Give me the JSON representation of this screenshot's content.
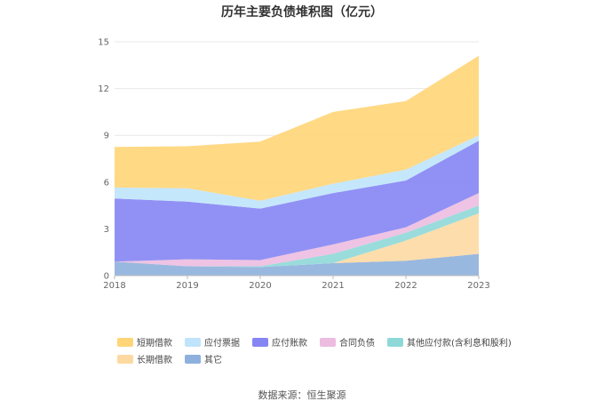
{
  "chart_data": {
    "type": "area",
    "stacked": true,
    "title": "历年主要负债堆积图（亿元）",
    "x": [
      "2018",
      "2019",
      "2020",
      "2021",
      "2022",
      "2023"
    ],
    "ylim": [
      0,
      15
    ],
    "yticks": [
      "0",
      "3",
      "6",
      "9",
      "12",
      "15"
    ],
    "grid": true,
    "legend_position": "bottom",
    "series": [
      {
        "name": "其它",
        "color": "#8eb0dc",
        "values": [
          0.9,
          0.6,
          0.55,
          0.8,
          0.95,
          1.4
        ]
      },
      {
        "name": "长期借款",
        "color": "#fdd9a2",
        "values": [
          0.0,
          0.0,
          0.0,
          0.0,
          1.3,
          2.6
        ]
      },
      {
        "name": "其他应付款(含利息和股利)",
        "color": "#8fd8d8",
        "values": [
          0.0,
          0.0,
          0.05,
          0.6,
          0.5,
          0.5
        ]
      },
      {
        "name": "合同负债",
        "color": "#ecbde0",
        "values": [
          0.0,
          0.45,
          0.4,
          0.6,
          0.35,
          0.8
        ]
      },
      {
        "name": "应付账款",
        "color": "#8585f4",
        "values": [
          4.05,
          3.7,
          3.3,
          3.3,
          3.0,
          3.35
        ]
      },
      {
        "name": "应付票据",
        "color": "#bfe4fb",
        "values": [
          0.7,
          0.85,
          0.5,
          0.6,
          0.7,
          0.35
        ]
      },
      {
        "name": "短期借款",
        "color": "#ffd577",
        "values": [
          2.6,
          2.7,
          3.8,
          4.6,
          4.4,
          5.1
        ]
      }
    ],
    "legend_order": [
      "短期借款",
      "应付票据",
      "应付账款",
      "合同负债",
      "其他应付款(含利息和股利)",
      "长期借款",
      "其它"
    ]
  },
  "source_label": "数据来源：恒生聚源"
}
